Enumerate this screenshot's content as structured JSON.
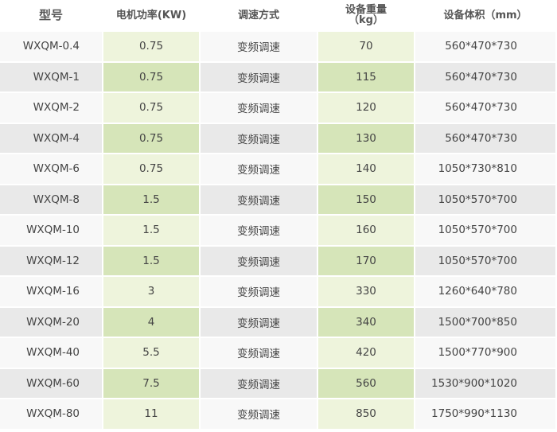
{
  "table": {
    "header": [
      "型号",
      "电机功率(KW)",
      "调速方式",
      "设备重量\n（kg）",
      "设备体积（mm）"
    ],
    "rows": [
      [
        "WXQM-0.4",
        "0.75",
        "变频调速",
        "70",
        "560*470*730"
      ],
      [
        "WXQM-1",
        "0.75",
        "变频调速",
        "115",
        "560*470*730"
      ],
      [
        "WXQM-2",
        "0.75",
        "变频调速",
        "120",
        "560*470*730"
      ],
      [
        "WXQM-4",
        "0.75",
        "变频调速",
        "130",
        "560*470*730"
      ],
      [
        "WXQM-6",
        "0.75",
        "变频调速",
        "140",
        "1050*730*810"
      ],
      [
        "WXQM-8",
        "1.5",
        "变频调速",
        "150",
        "1050*570*700"
      ],
      [
        "WXQM-10",
        "1.5",
        "变频调速",
        "160",
        "1050*570*700"
      ],
      [
        "WXQM-12",
        "1.5",
        "变频调速",
        "170",
        "1050*570*700"
      ],
      [
        "WXQM-16",
        "3",
        "变频调速",
        "330",
        "1260*640*780"
      ],
      [
        "WXQM-20",
        "4",
        "变频调速",
        "340",
        "1500*700*850"
      ],
      [
        "WXQM-40",
        "5.5",
        "变频调速",
        "420",
        "1500*770*900"
      ],
      [
        "WXQM-60",
        "7.5",
        "变频调速",
        "560",
        "1530*900*1020"
      ],
      [
        "WXQM-80",
        "11",
        "变频调速",
        "850",
        "1750*990*1130"
      ]
    ]
  }
}
